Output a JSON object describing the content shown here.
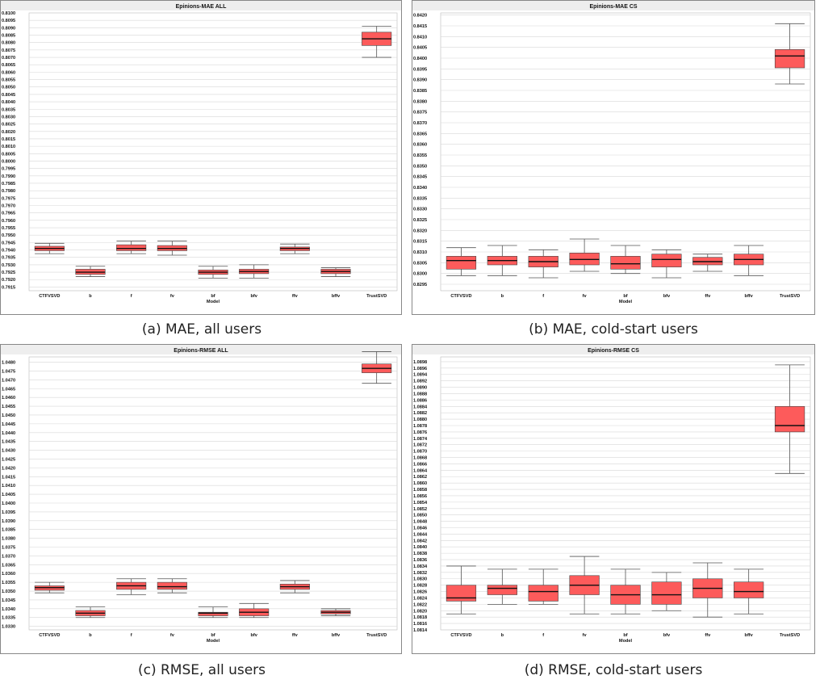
{
  "colors": {
    "box": "#fd5b5b",
    "median": "#111111",
    "grid": "#d8d8d8",
    "title_bg": "#eeeeee",
    "frame": "#888888"
  },
  "chart_data": [
    {
      "type": "box",
      "title": "Epinions-MAE ALL",
      "xlabel": "Model",
      "caption": "(a) MAE, all users",
      "ylim": [
        0.79125,
        0.81
      ],
      "yticks": [
        "0.7915",
        "0.7920",
        "0.7925",
        "0.7930",
        "0.7935",
        "0.7940",
        "0.7945",
        "0.7950",
        "0.7955",
        "0.7960",
        "0.7965",
        "0.7970",
        "0.7975",
        "0.7980",
        "0.7985",
        "0.7990",
        "0.7995",
        "0.8000",
        "0.8005",
        "0.8010",
        "0.8015",
        "0.8020",
        "0.8025",
        "0.8030",
        "0.8035",
        "0.8040",
        "0.8045",
        "0.8050",
        "0.8055",
        "0.8060",
        "0.8065",
        "0.8070",
        "0.8075",
        "0.8080",
        "0.8085",
        "0.8090",
        "0.8095",
        "0.8100"
      ],
      "categories": [
        "CTFVSVD",
        "b",
        "f",
        "fv",
        "bf",
        "bfv",
        "ffv",
        "bffv",
        "TrustSVD"
      ],
      "boxes": [
        {
          "min": 0.79375,
          "q1": 0.79395,
          "median": 0.7941,
          "q3": 0.79425,
          "max": 0.79445
        },
        {
          "min": 0.7922,
          "q1": 0.79235,
          "median": 0.7925,
          "q3": 0.7927,
          "max": 0.7929
        },
        {
          "min": 0.79375,
          "q1": 0.79395,
          "median": 0.7941,
          "q3": 0.79435,
          "max": 0.7946
        },
        {
          "min": 0.79365,
          "q1": 0.79395,
          "median": 0.7941,
          "q3": 0.7943,
          "max": 0.7946
        },
        {
          "min": 0.7921,
          "q1": 0.79235,
          "median": 0.7925,
          "q3": 0.79265,
          "max": 0.7929
        },
        {
          "min": 0.7921,
          "q1": 0.7924,
          "median": 0.79255,
          "q3": 0.7927,
          "max": 0.793
        },
        {
          "min": 0.79375,
          "q1": 0.79395,
          "median": 0.7941,
          "q3": 0.7942,
          "max": 0.7944
        },
        {
          "min": 0.7922,
          "q1": 0.7924,
          "median": 0.79255,
          "q3": 0.7927,
          "max": 0.7928
        },
        {
          "min": 0.807,
          "q1": 0.8078,
          "median": 0.80825,
          "q3": 0.8087,
          "max": 0.8091
        }
      ]
    },
    {
      "type": "box",
      "title": "Epinions-MAE CS",
      "xlabel": "Model",
      "caption": "(b) MAE, cold-start users",
      "ylim": [
        0.8292,
        0.8421
      ],
      "yticks": [
        "0.8295",
        "0.8300",
        "0.8305",
        "0.8310",
        "0.8315",
        "0.8320",
        "0.8325",
        "0.8330",
        "0.8335",
        "0.8340",
        "0.8345",
        "0.8350",
        "0.8355",
        "0.8360",
        "0.8365",
        "0.8370",
        "0.8375",
        "0.8380",
        "0.8385",
        "0.8390",
        "0.8395",
        "0.8400",
        "0.8405",
        "0.8410",
        "0.8415",
        "0.8420"
      ],
      "categories": [
        "CTFVSVD",
        "b",
        "f",
        "fv",
        "bf",
        "bfv",
        "ffv",
        "bffv",
        "TrustSVD"
      ],
      "boxes": [
        {
          "min": 0.8299,
          "q1": 0.8302,
          "median": 0.8306,
          "q3": 0.8308,
          "max": 0.8312
        },
        {
          "min": 0.8299,
          "q1": 0.8304,
          "median": 0.8306,
          "q3": 0.8308,
          "max": 0.8313
        },
        {
          "min": 0.8298,
          "q1": 0.8303,
          "median": 0.83055,
          "q3": 0.8308,
          "max": 0.8311
        },
        {
          "min": 0.8301,
          "q1": 0.8304,
          "median": 0.83065,
          "q3": 0.83095,
          "max": 0.8316
        },
        {
          "min": 0.83,
          "q1": 0.8302,
          "median": 0.83045,
          "q3": 0.8308,
          "max": 0.8313
        },
        {
          "min": 0.8298,
          "q1": 0.8303,
          "median": 0.83065,
          "q3": 0.8309,
          "max": 0.8311
        },
        {
          "min": 0.8301,
          "q1": 0.8304,
          "median": 0.83055,
          "q3": 0.83075,
          "max": 0.8309
        },
        {
          "min": 0.8299,
          "q1": 0.8304,
          "median": 0.83065,
          "q3": 0.8309,
          "max": 0.8313
        },
        {
          "min": 0.8388,
          "q1": 0.83955,
          "median": 0.8401,
          "q3": 0.8404,
          "max": 0.8416
        }
      ]
    },
    {
      "type": "box",
      "title": "Epinions-RMSE ALL",
      "xlabel": "Model",
      "caption": "(c) RMSE, all users",
      "ylim": [
        1.0328,
        1.0483
      ],
      "yticks": [
        "1.0330",
        "1.0335",
        "1.0340",
        "1.0345",
        "1.0350",
        "1.0355",
        "1.0360",
        "1.0365",
        "1.0370",
        "1.0375",
        "1.0380",
        "1.0385",
        "1.0390",
        "1.0395",
        "1.0400",
        "1.0405",
        "1.0410",
        "1.0415",
        "1.0420",
        "1.0425",
        "1.0430",
        "1.0435",
        "1.0440",
        "1.0445",
        "1.0450",
        "1.0455",
        "1.0460",
        "1.0465",
        "1.0470",
        "1.0475",
        "1.0480"
      ],
      "categories": [
        "CTFVSVD",
        "b",
        "f",
        "fv",
        "bf",
        "bfv",
        "ffv",
        "bffv",
        "TrustSVD"
      ],
      "boxes": [
        {
          "min": 1.0349,
          "q1": 1.03505,
          "median": 1.0352,
          "q3": 1.0353,
          "max": 1.0355
        },
        {
          "min": 1.0335,
          "q1": 1.0336,
          "median": 1.03375,
          "q3": 1.0339,
          "max": 1.0341
        },
        {
          "min": 1.0348,
          "q1": 1.0351,
          "median": 1.0353,
          "q3": 1.0355,
          "max": 1.0357
        },
        {
          "min": 1.0349,
          "q1": 1.0351,
          "median": 1.03525,
          "q3": 1.0355,
          "max": 1.0357
        },
        {
          "min": 1.0335,
          "q1": 1.0336,
          "median": 1.03375,
          "q3": 1.0338,
          "max": 1.0341
        },
        {
          "min": 1.0335,
          "q1": 1.0336,
          "median": 1.0338,
          "q3": 1.034,
          "max": 1.0343
        },
        {
          "min": 1.0349,
          "q1": 1.0351,
          "median": 1.03525,
          "q3": 1.0354,
          "max": 1.0356
        },
        {
          "min": 1.0336,
          "q1": 1.0337,
          "median": 1.0338,
          "q3": 1.0339,
          "max": 1.034
        },
        {
          "min": 1.0468,
          "q1": 1.0474,
          "median": 1.04765,
          "q3": 1.0479,
          "max": 1.0486
        }
      ]
    },
    {
      "type": "box",
      "title": "Epinions-RMSE CS",
      "xlabel": "Model",
      "caption": "(d) RMSE, cold-start users",
      "ylim": [
        1.0814,
        1.08995
      ],
      "yticks": [
        "1.0814",
        "1.0816",
        "1.0818",
        "1.0820",
        "1.0822",
        "1.0824",
        "1.0826",
        "1.0828",
        "1.0830",
        "1.0832",
        "1.0834",
        "1.0836",
        "1.0838",
        "1.0840",
        "1.0842",
        "1.0844",
        "1.0846",
        "1.0848",
        "1.0850",
        "1.0852",
        "1.0854",
        "1.0856",
        "1.0858",
        "1.0860",
        "1.0862",
        "1.0864",
        "1.0866",
        "1.0868",
        "1.0870",
        "1.0872",
        "1.0874",
        "1.0876",
        "1.0878",
        "1.0880",
        "1.0882",
        "1.0884",
        "1.0886",
        "1.0888",
        "1.0890",
        "1.0892",
        "1.0894",
        "1.0896",
        "1.0898"
      ],
      "categories": [
        "CTFVSVD",
        "b",
        "f",
        "fv",
        "bf",
        "bfv",
        "ffv",
        "bffv",
        "TrustSVD"
      ],
      "boxes": [
        {
          "min": 1.0819,
          "q1": 1.0823,
          "median": 1.0824,
          "q3": 1.0828,
          "max": 1.0834
        },
        {
          "min": 1.0822,
          "q1": 1.0825,
          "median": 1.0827,
          "q3": 1.0828,
          "max": 1.0833
        },
        {
          "min": 1.0822,
          "q1": 1.0823,
          "median": 1.0826,
          "q3": 1.0828,
          "max": 1.0833
        },
        {
          "min": 1.0819,
          "q1": 1.0825,
          "median": 1.0828,
          "q3": 1.0831,
          "max": 1.0837
        },
        {
          "min": 1.0819,
          "q1": 1.0822,
          "median": 1.0825,
          "q3": 1.0828,
          "max": 1.0833
        },
        {
          "min": 1.082,
          "q1": 1.0822,
          "median": 1.0825,
          "q3": 1.0829,
          "max": 1.0832
        },
        {
          "min": 1.0818,
          "q1": 1.0824,
          "median": 1.0827,
          "q3": 1.083,
          "max": 1.0835
        },
        {
          "min": 1.0819,
          "q1": 1.0824,
          "median": 1.0826,
          "q3": 1.0829,
          "max": 1.0833
        },
        {
          "min": 1.0863,
          "q1": 1.0876,
          "median": 1.0878,
          "q3": 1.0884,
          "max": 1.0897
        }
      ]
    }
  ]
}
